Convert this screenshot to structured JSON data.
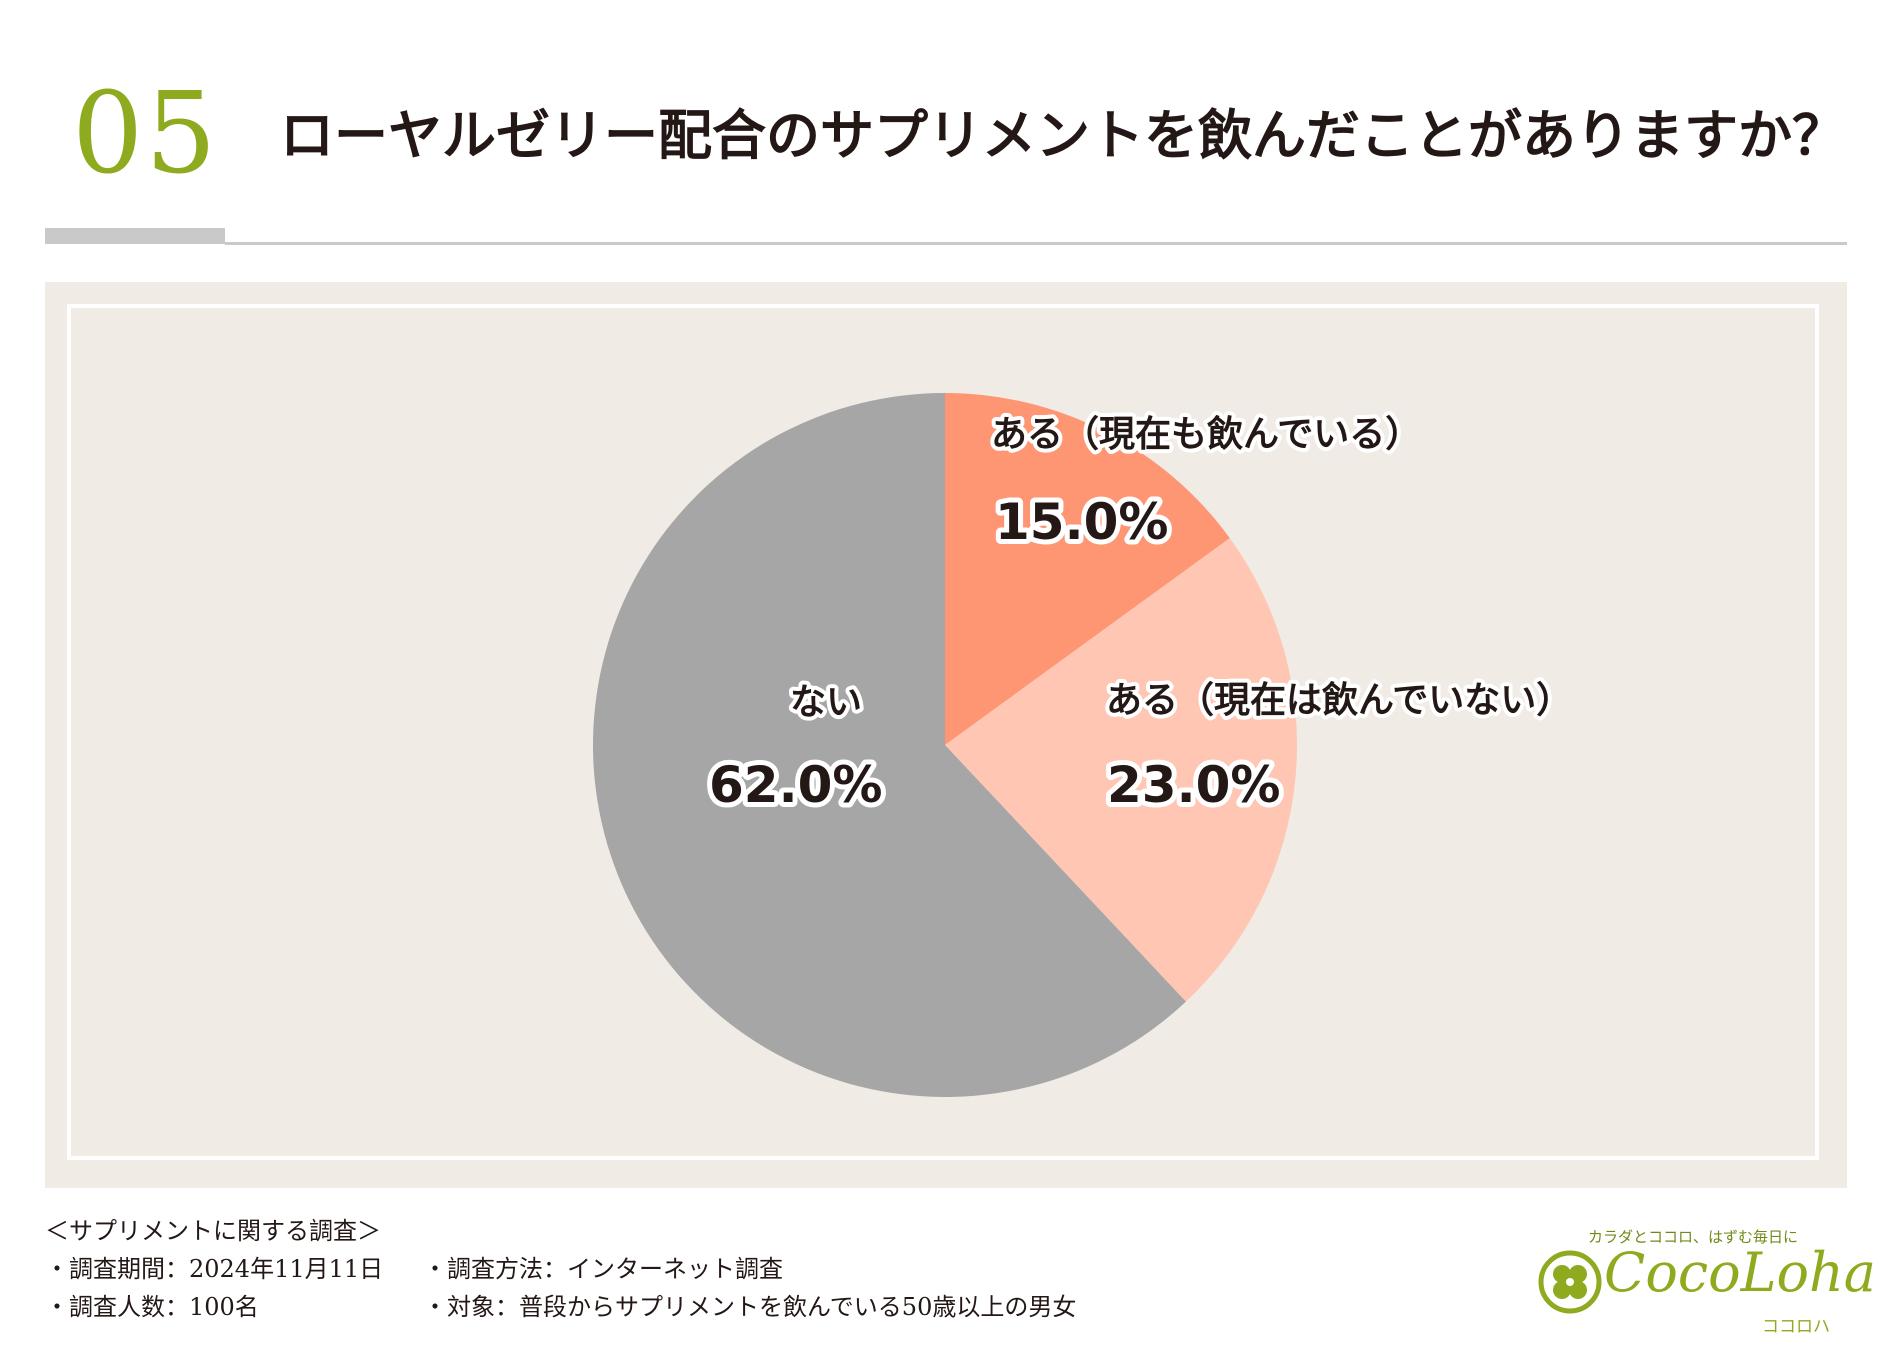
{
  "header": {
    "number": "05",
    "title": "ローヤルゼリー配合のサプリメントを飲んだことがありますか？"
  },
  "chart_data": {
    "type": "pie",
    "categories": [
      "ある（現在も飲んでいる）",
      "ある（現在は飲んでいない）",
      "ない"
    ],
    "values": [
      15.0,
      23.0,
      62.0
    ],
    "value_labels": [
      "15.0%",
      "23.0%",
      "62.0%"
    ],
    "colors": [
      "#ff9673",
      "#ffc6b3",
      "#a6a6a6"
    ],
    "start": "12 o'clock, clockwise",
    "legend": "none (labels on slices)"
  },
  "footer": {
    "title": "＜サプリメントに関する調査＞",
    "period": "・調査期間：2024年11月11日",
    "count": "・調査人数：100名",
    "method": "・調査方法：インターネット調査",
    "target": "・対象：普段からサプリメントを飲んでいる50歳以上の男女"
  },
  "logo": {
    "tagline": "カラダとココロ、はずむ毎日に",
    "name": "CocoLoha",
    "kana": "ココロハ"
  }
}
